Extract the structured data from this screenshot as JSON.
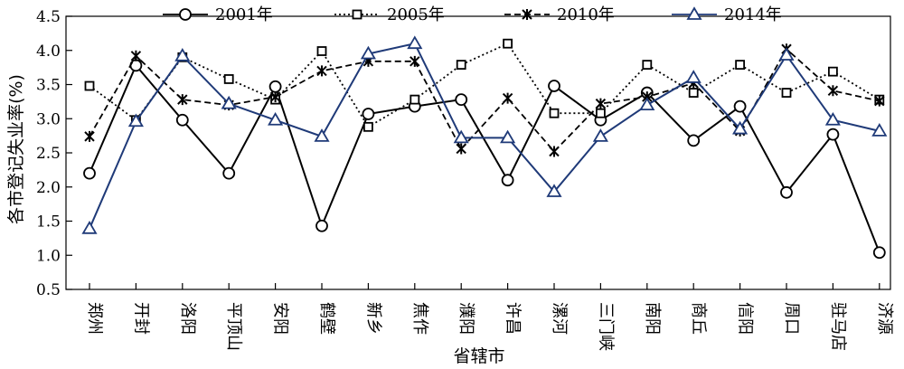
{
  "chart_data": {
    "type": "line",
    "xlabel": "省辖市",
    "ylabel": "各市登记失业率(%)",
    "ylim": [
      0.5,
      4.5
    ],
    "yticks": [
      "0.5",
      "1.0",
      "1.5",
      "2.0",
      "2.5",
      "3.0",
      "3.5",
      "4.0",
      "4.5"
    ],
    "grid": false,
    "legend_position": "top",
    "categories": [
      "郑州",
      "开封",
      "洛阳",
      "平顶山",
      "安阳",
      "鹤壁",
      "新乡",
      "焦作",
      "濮阳",
      "许昌",
      "漯河",
      "三门峡",
      "南阳",
      "商丘",
      "信阳",
      "周口",
      "驻马店",
      "济源"
    ],
    "series": [
      {
        "name": "2001年",
        "color": "#000000",
        "line_style": "solid",
        "marker": "circle",
        "values": [
          2.2,
          3.78,
          2.98,
          2.2,
          3.47,
          1.43,
          3.07,
          3.18,
          3.28,
          2.1,
          3.48,
          2.98,
          3.38,
          2.68,
          3.18,
          1.92,
          2.77,
          1.04
        ]
      },
      {
        "name": "2005年",
        "color": "#000000",
        "line_style": "dotted",
        "marker": "square",
        "values": [
          3.48,
          2.98,
          3.9,
          3.58,
          3.28,
          3.99,
          2.88,
          3.28,
          3.79,
          4.1,
          3.08,
          3.08,
          3.79,
          3.38,
          3.79,
          3.38,
          3.69,
          3.28
        ]
      },
      {
        "name": "2010年",
        "color": "#000000",
        "line_style": "dashed",
        "marker": "x",
        "values": [
          2.74,
          3.92,
          3.28,
          3.2,
          3.32,
          3.7,
          3.84,
          3.84,
          2.56,
          3.3,
          2.52,
          3.22,
          3.32,
          3.52,
          2.82,
          4.02,
          3.41,
          3.26
        ]
      },
      {
        "name": "2014年",
        "color": "#1f3a78",
        "line_style": "solid",
        "marker": "triangle",
        "values": [
          1.39,
          2.96,
          3.92,
          3.22,
          2.98,
          2.74,
          3.95,
          4.1,
          2.72,
          2.72,
          1.93,
          2.74,
          3.2,
          3.6,
          2.85,
          3.93,
          2.98,
          2.82
        ]
      }
    ]
  }
}
